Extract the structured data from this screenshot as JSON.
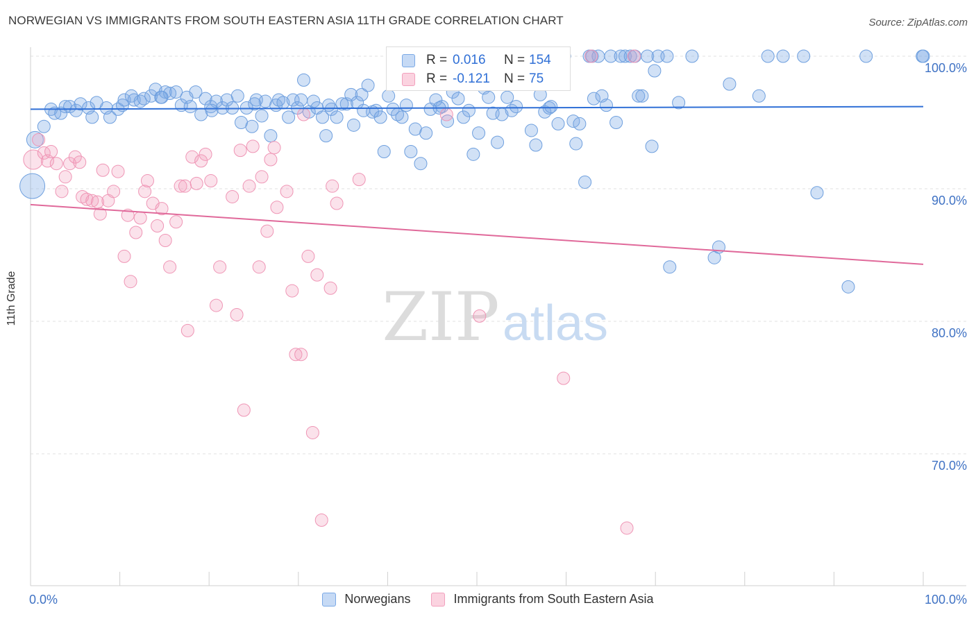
{
  "title": "NORWEGIAN VS IMMIGRANTS FROM SOUTH EASTERN ASIA 11TH GRADE CORRELATION CHART",
  "source": "Source: ZipAtlas.com",
  "watermark": {
    "zip": "ZIP",
    "atlas": "atlas"
  },
  "legend_stats": {
    "r_label": "R =",
    "n_label": "N =",
    "rows": [
      {
        "r": "0.016",
        "n": "154",
        "color": "#7aa9e6"
      },
      {
        "r": "-0.121",
        "n": "75",
        "color": "#f2a0bd"
      }
    ]
  },
  "bottom_legend": [
    {
      "label": "Norwegians",
      "color": "#7aa9e6"
    },
    {
      "label": "Immigrants from South Eastern Asia",
      "color": "#f2a0bd"
    }
  ],
  "chart_data": {
    "type": "scatter",
    "ylabel": "11th Grade",
    "xlabel": "",
    "xlim": [
      0,
      100
    ],
    "ylim": [
      60.5,
      102
    ],
    "x_tick_labels": [
      "0.0%",
      "100.0%"
    ],
    "y_ticks": [
      {
        "value": 100,
        "label": "100.0%"
      },
      {
        "value": 90,
        "label": "90.0%"
      },
      {
        "value": 80,
        "label": "80.0%"
      },
      {
        "value": 70,
        "label": "70.0%"
      }
    ],
    "grid": "horizontal dashed",
    "series": [
      {
        "name": "Norwegians",
        "color": "#7aa9e6",
        "trend": {
          "x": [
            0,
            100
          ],
          "y": [
            96.0,
            96.2
          ]
        },
        "points": [
          [
            0.2,
            90.2
          ],
          [
            0.5,
            93.7
          ],
          [
            1.5,
            94.7
          ],
          [
            2.3,
            96
          ],
          [
            2.7,
            95.7
          ],
          [
            3.4,
            95.7
          ],
          [
            3.9,
            96.2
          ],
          [
            4.4,
            96.2
          ],
          [
            5.1,
            95.9
          ],
          [
            5.6,
            96.4
          ],
          [
            6.5,
            96.1
          ],
          [
            6.9,
            95.4
          ],
          [
            7.4,
            96.5
          ],
          [
            8.5,
            96.1
          ],
          [
            8.9,
            95.4
          ],
          [
            9.8,
            96.0
          ],
          [
            10.3,
            96.3
          ],
          [
            10.5,
            96.7
          ],
          [
            11.3,
            97.0
          ],
          [
            11.6,
            96.7
          ],
          [
            12.3,
            96.6
          ],
          [
            12.7,
            96.8
          ],
          [
            13.5,
            97.0
          ],
          [
            14.0,
            97.5
          ],
          [
            14.6,
            96.9
          ],
          [
            15.1,
            97.3
          ],
          [
            15.6,
            97.2
          ],
          [
            16.3,
            97.3
          ],
          [
            16.9,
            96.3
          ],
          [
            17.5,
            96.9
          ],
          [
            17.9,
            96.2
          ],
          [
            18.5,
            97.3
          ],
          [
            19.1,
            95.6
          ],
          [
            19.6,
            96.8
          ],
          [
            20.2,
            96.2
          ],
          [
            20.8,
            96.6
          ],
          [
            21.5,
            96.1
          ],
          [
            22.0,
            96.7
          ],
          [
            22.6,
            96.1
          ],
          [
            23.2,
            97.0
          ],
          [
            23.6,
            95.0
          ],
          [
            24.2,
            96.1
          ],
          [
            24.8,
            94.7
          ],
          [
            25.3,
            96.7
          ],
          [
            25.9,
            95.5
          ],
          [
            26.3,
            96.6
          ],
          [
            26.9,
            94.0
          ],
          [
            27.5,
            96.3
          ],
          [
            27.8,
            96.7
          ],
          [
            28.3,
            96.5
          ],
          [
            28.9,
            95.4
          ],
          [
            29.4,
            96.7
          ],
          [
            29.9,
            96.1
          ],
          [
            30.3,
            96.7
          ],
          [
            30.6,
            98.2
          ],
          [
            31.2,
            95.8
          ],
          [
            31.7,
            96.6
          ],
          [
            32.1,
            96.1
          ],
          [
            32.7,
            95.4
          ],
          [
            33.1,
            94.0
          ],
          [
            33.7,
            96.0
          ],
          [
            34.3,
            95.4
          ],
          [
            34.9,
            96.4
          ],
          [
            35.4,
            96.4
          ],
          [
            35.9,
            97.1
          ],
          [
            36.2,
            94.8
          ],
          [
            36.6,
            96.5
          ],
          [
            37.1,
            97.1
          ],
          [
            37.8,
            97.8
          ],
          [
            38.3,
            95.8
          ],
          [
            38.7,
            95.9
          ],
          [
            39.2,
            95.4
          ],
          [
            39.6,
            92.8
          ],
          [
            40.1,
            97.0
          ],
          [
            40.6,
            96.0
          ],
          [
            41.1,
            95.6
          ],
          [
            41.6,
            95.4
          ],
          [
            42.1,
            96.3
          ],
          [
            42.6,
            92.8
          ],
          [
            43.1,
            94.5
          ],
          [
            43.7,
            91.9
          ],
          [
            44.3,
            94.2
          ],
          [
            44.8,
            96.0
          ],
          [
            45.4,
            96.7
          ],
          [
            46.1,
            96.2
          ],
          [
            46.7,
            95.1
          ],
          [
            47.3,
            97.3
          ],
          [
            47.9,
            96.8
          ],
          [
            48.5,
            95.4
          ],
          [
            49.1,
            95.9
          ],
          [
            49.6,
            92.6
          ],
          [
            50.2,
            94.2
          ],
          [
            50.8,
            97.6
          ],
          [
            51.3,
            96.9
          ],
          [
            51.8,
            95.7
          ],
          [
            52.3,
            93.5
          ],
          [
            52.8,
            95.6
          ],
          [
            53.4,
            96.9
          ],
          [
            53.9,
            95.9
          ],
          [
            54.4,
            96.2
          ],
          [
            55.1,
            100
          ],
          [
            55.6,
            99.2
          ],
          [
            56.1,
            94.4
          ],
          [
            56.6,
            93.3
          ],
          [
            57.1,
            97.1
          ],
          [
            57.6,
            95.8
          ],
          [
            58.1,
            96.1
          ],
          [
            59.1,
            94.9
          ],
          [
            59.8,
            100
          ],
          [
            60.8,
            95.1
          ],
          [
            61.1,
            93.4
          ],
          [
            61.5,
            94.9
          ],
          [
            62.1,
            90.5
          ],
          [
            62.6,
            100
          ],
          [
            62.9,
            100
          ],
          [
            63.1,
            96.8
          ],
          [
            63.6,
            100
          ],
          [
            64.0,
            97.0
          ],
          [
            64.5,
            96.3
          ],
          [
            65.0,
            100
          ],
          [
            65.6,
            95.0
          ],
          [
            66.1,
            100
          ],
          [
            66.6,
            100
          ],
          [
            67.2,
            100
          ],
          [
            67.7,
            100
          ],
          [
            68.1,
            97.0
          ],
          [
            68.5,
            97.0
          ],
          [
            69.1,
            100
          ],
          [
            69.6,
            93.2
          ],
          [
            69.9,
            98.9
          ],
          [
            70.3,
            100
          ],
          [
            71.3,
            100
          ],
          [
            71.6,
            84.1
          ],
          [
            72.6,
            96.5
          ],
          [
            74.1,
            100
          ],
          [
            76.6,
            84.8
          ],
          [
            77.1,
            85.6
          ],
          [
            78.3,
            97.9
          ],
          [
            81.6,
            97.0
          ],
          [
            82.6,
            100
          ],
          [
            84.3,
            100
          ],
          [
            86.6,
            100
          ],
          [
            88.1,
            89.7
          ],
          [
            91.6,
            82.6
          ],
          [
            93.6,
            100
          ],
          [
            99.9,
            100
          ],
          [
            100,
            100
          ],
          [
            58.3,
            96.2
          ],
          [
            45.8,
            96.1
          ],
          [
            37.3,
            95.9
          ],
          [
            33.4,
            96.3
          ],
          [
            25.1,
            96.4
          ],
          [
            20.3,
            95.9
          ],
          [
            14.7,
            96.9
          ]
        ]
      },
      {
        "name": "Immigrants from South Eastern Asia",
        "color": "#f2a0bd",
        "trend": {
          "x": [
            0,
            100
          ],
          "y": [
            88.8,
            84.3
          ]
        },
        "points": [
          [
            0.3,
            92.2
          ],
          [
            0.9,
            93.7
          ],
          [
            1.5,
            92.7
          ],
          [
            1.9,
            92.1
          ],
          [
            2.3,
            92.8
          ],
          [
            2.9,
            91.9
          ],
          [
            3.5,
            89.8
          ],
          [
            3.9,
            90.9
          ],
          [
            4.4,
            91.9
          ],
          [
            5.0,
            92.4
          ],
          [
            5.5,
            92.0
          ],
          [
            5.8,
            89.4
          ],
          [
            6.3,
            89.2
          ],
          [
            6.9,
            89.1
          ],
          [
            7.5,
            89.0
          ],
          [
            7.8,
            88.1
          ],
          [
            8.1,
            91.4
          ],
          [
            8.7,
            89.1
          ],
          [
            9.3,
            89.8
          ],
          [
            9.8,
            91.3
          ],
          [
            10.5,
            84.9
          ],
          [
            10.9,
            88.0
          ],
          [
            11.2,
            83.0
          ],
          [
            11.8,
            86.7
          ],
          [
            12.3,
            87.8
          ],
          [
            12.8,
            89.8
          ],
          [
            13.1,
            90.6
          ],
          [
            13.7,
            88.9
          ],
          [
            14.2,
            87.2
          ],
          [
            14.7,
            88.5
          ],
          [
            15.1,
            86.1
          ],
          [
            15.6,
            84.1
          ],
          [
            16.3,
            87.5
          ],
          [
            16.8,
            90.2
          ],
          [
            17.3,
            90.2
          ],
          [
            17.6,
            79.3
          ],
          [
            18.1,
            92.4
          ],
          [
            18.6,
            90.4
          ],
          [
            19.1,
            92.1
          ],
          [
            19.6,
            92.6
          ],
          [
            20.2,
            90.6
          ],
          [
            20.8,
            81.2
          ],
          [
            21.2,
            84.1
          ],
          [
            22.6,
            89.4
          ],
          [
            23.1,
            80.5
          ],
          [
            23.5,
            92.9
          ],
          [
            23.9,
            73.3
          ],
          [
            24.5,
            90.2
          ],
          [
            24.9,
            93.2
          ],
          [
            25.6,
            84.1
          ],
          [
            25.9,
            90.9
          ],
          [
            26.5,
            86.8
          ],
          [
            26.9,
            92.2
          ],
          [
            27.3,
            93.1
          ],
          [
            27.6,
            88.6
          ],
          [
            28.7,
            89.8
          ],
          [
            29.3,
            82.3
          ],
          [
            29.7,
            77.5
          ],
          [
            30.3,
            77.5
          ],
          [
            30.6,
            95.6
          ],
          [
            31.1,
            84.9
          ],
          [
            31.6,
            71.6
          ],
          [
            32.1,
            83.5
          ],
          [
            32.6,
            65.0
          ],
          [
            33.6,
            82.5
          ],
          [
            33.8,
            90.2
          ],
          [
            34.3,
            88.9
          ],
          [
            36.8,
            90.7
          ],
          [
            40.6,
            100
          ],
          [
            46.6,
            95.6
          ],
          [
            50.3,
            80.4
          ],
          [
            59.7,
            75.7
          ],
          [
            62.8,
            100
          ],
          [
            66.8,
            64.4
          ],
          [
            67.6,
            100
          ]
        ]
      }
    ]
  }
}
